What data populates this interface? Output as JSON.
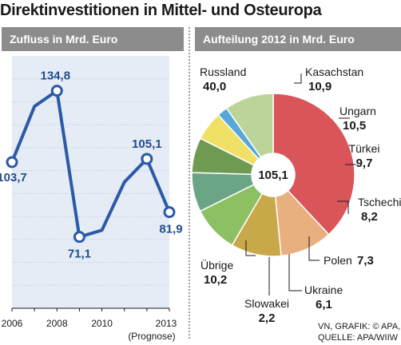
{
  "title": "Direktinvestitionen in Mittel- und Osteuropa",
  "left_panel": {
    "header": "Zufluss in Mrd. Euro"
  },
  "right_panel": {
    "header": "Aufteilung 2012 in Mrd. Euro"
  },
  "source": {
    "line1": "VN, GRAFIK: © APA,",
    "line2": "QUELLE: APA/WIIW"
  },
  "colors": {
    "line": "#2a5aa8",
    "area": "#e6ecf5",
    "header_bg": "#8c8c8c"
  },
  "chart_data": [
    {
      "type": "line",
      "title": "Zufluss in Mrd. Euro",
      "x": [
        2006,
        2007,
        2008,
        2009,
        2010,
        2011,
        2012,
        2013
      ],
      "y": [
        103.7,
        128.0,
        134.8,
        71.1,
        74.0,
        95.0,
        105.1,
        81.9
      ],
      "value_labels": [
        {
          "x": 2006,
          "text": "103,7"
        },
        {
          "x": 2008,
          "text": "134,8"
        },
        {
          "x": 2009,
          "text": "71,1"
        },
        {
          "x": 2012,
          "text": "105,1"
        },
        {
          "x": 2013,
          "text": "81,9"
        }
      ],
      "x_ticks": [
        "2006",
        "2008",
        "2010",
        "2013"
      ],
      "x_tick_note": "(Prognose)",
      "xlim": [
        2006,
        2013
      ],
      "ylim": [
        40,
        150
      ],
      "grid": "horizontal dotted"
    },
    {
      "type": "pie",
      "title": "Aufteilung 2012 in Mrd. Euro",
      "total_label": "105,1",
      "slices": [
        {
          "name": "Russland",
          "value": 40.0,
          "label": "40,0",
          "color": "#d9555a"
        },
        {
          "name": "Kasachstan",
          "value": 10.9,
          "label": "10,9",
          "color": "#e8b07f"
        },
        {
          "name": "Ungarn",
          "value": 10.5,
          "label": "10,5",
          "color": "#c9a84a"
        },
        {
          "name": "Türkei",
          "value": 9.7,
          "label": "9,7",
          "color": "#8cc063"
        },
        {
          "name": "Tschechien",
          "value": 8.2,
          "label": "8,2",
          "color": "#6aa686"
        },
        {
          "name": "Polen",
          "value": 7.3,
          "label": "7,3",
          "color": "#6e9a52"
        },
        {
          "name": "Ukraine",
          "value": 6.1,
          "label": "6,1",
          "color": "#f0e066"
        },
        {
          "name": "Slowakei",
          "value": 2.2,
          "label": "2,2",
          "color": "#57a7d8"
        },
        {
          "name": "Übrige",
          "value": 10.2,
          "label": "10,2",
          "color": "#bcd49a"
        }
      ]
    }
  ]
}
